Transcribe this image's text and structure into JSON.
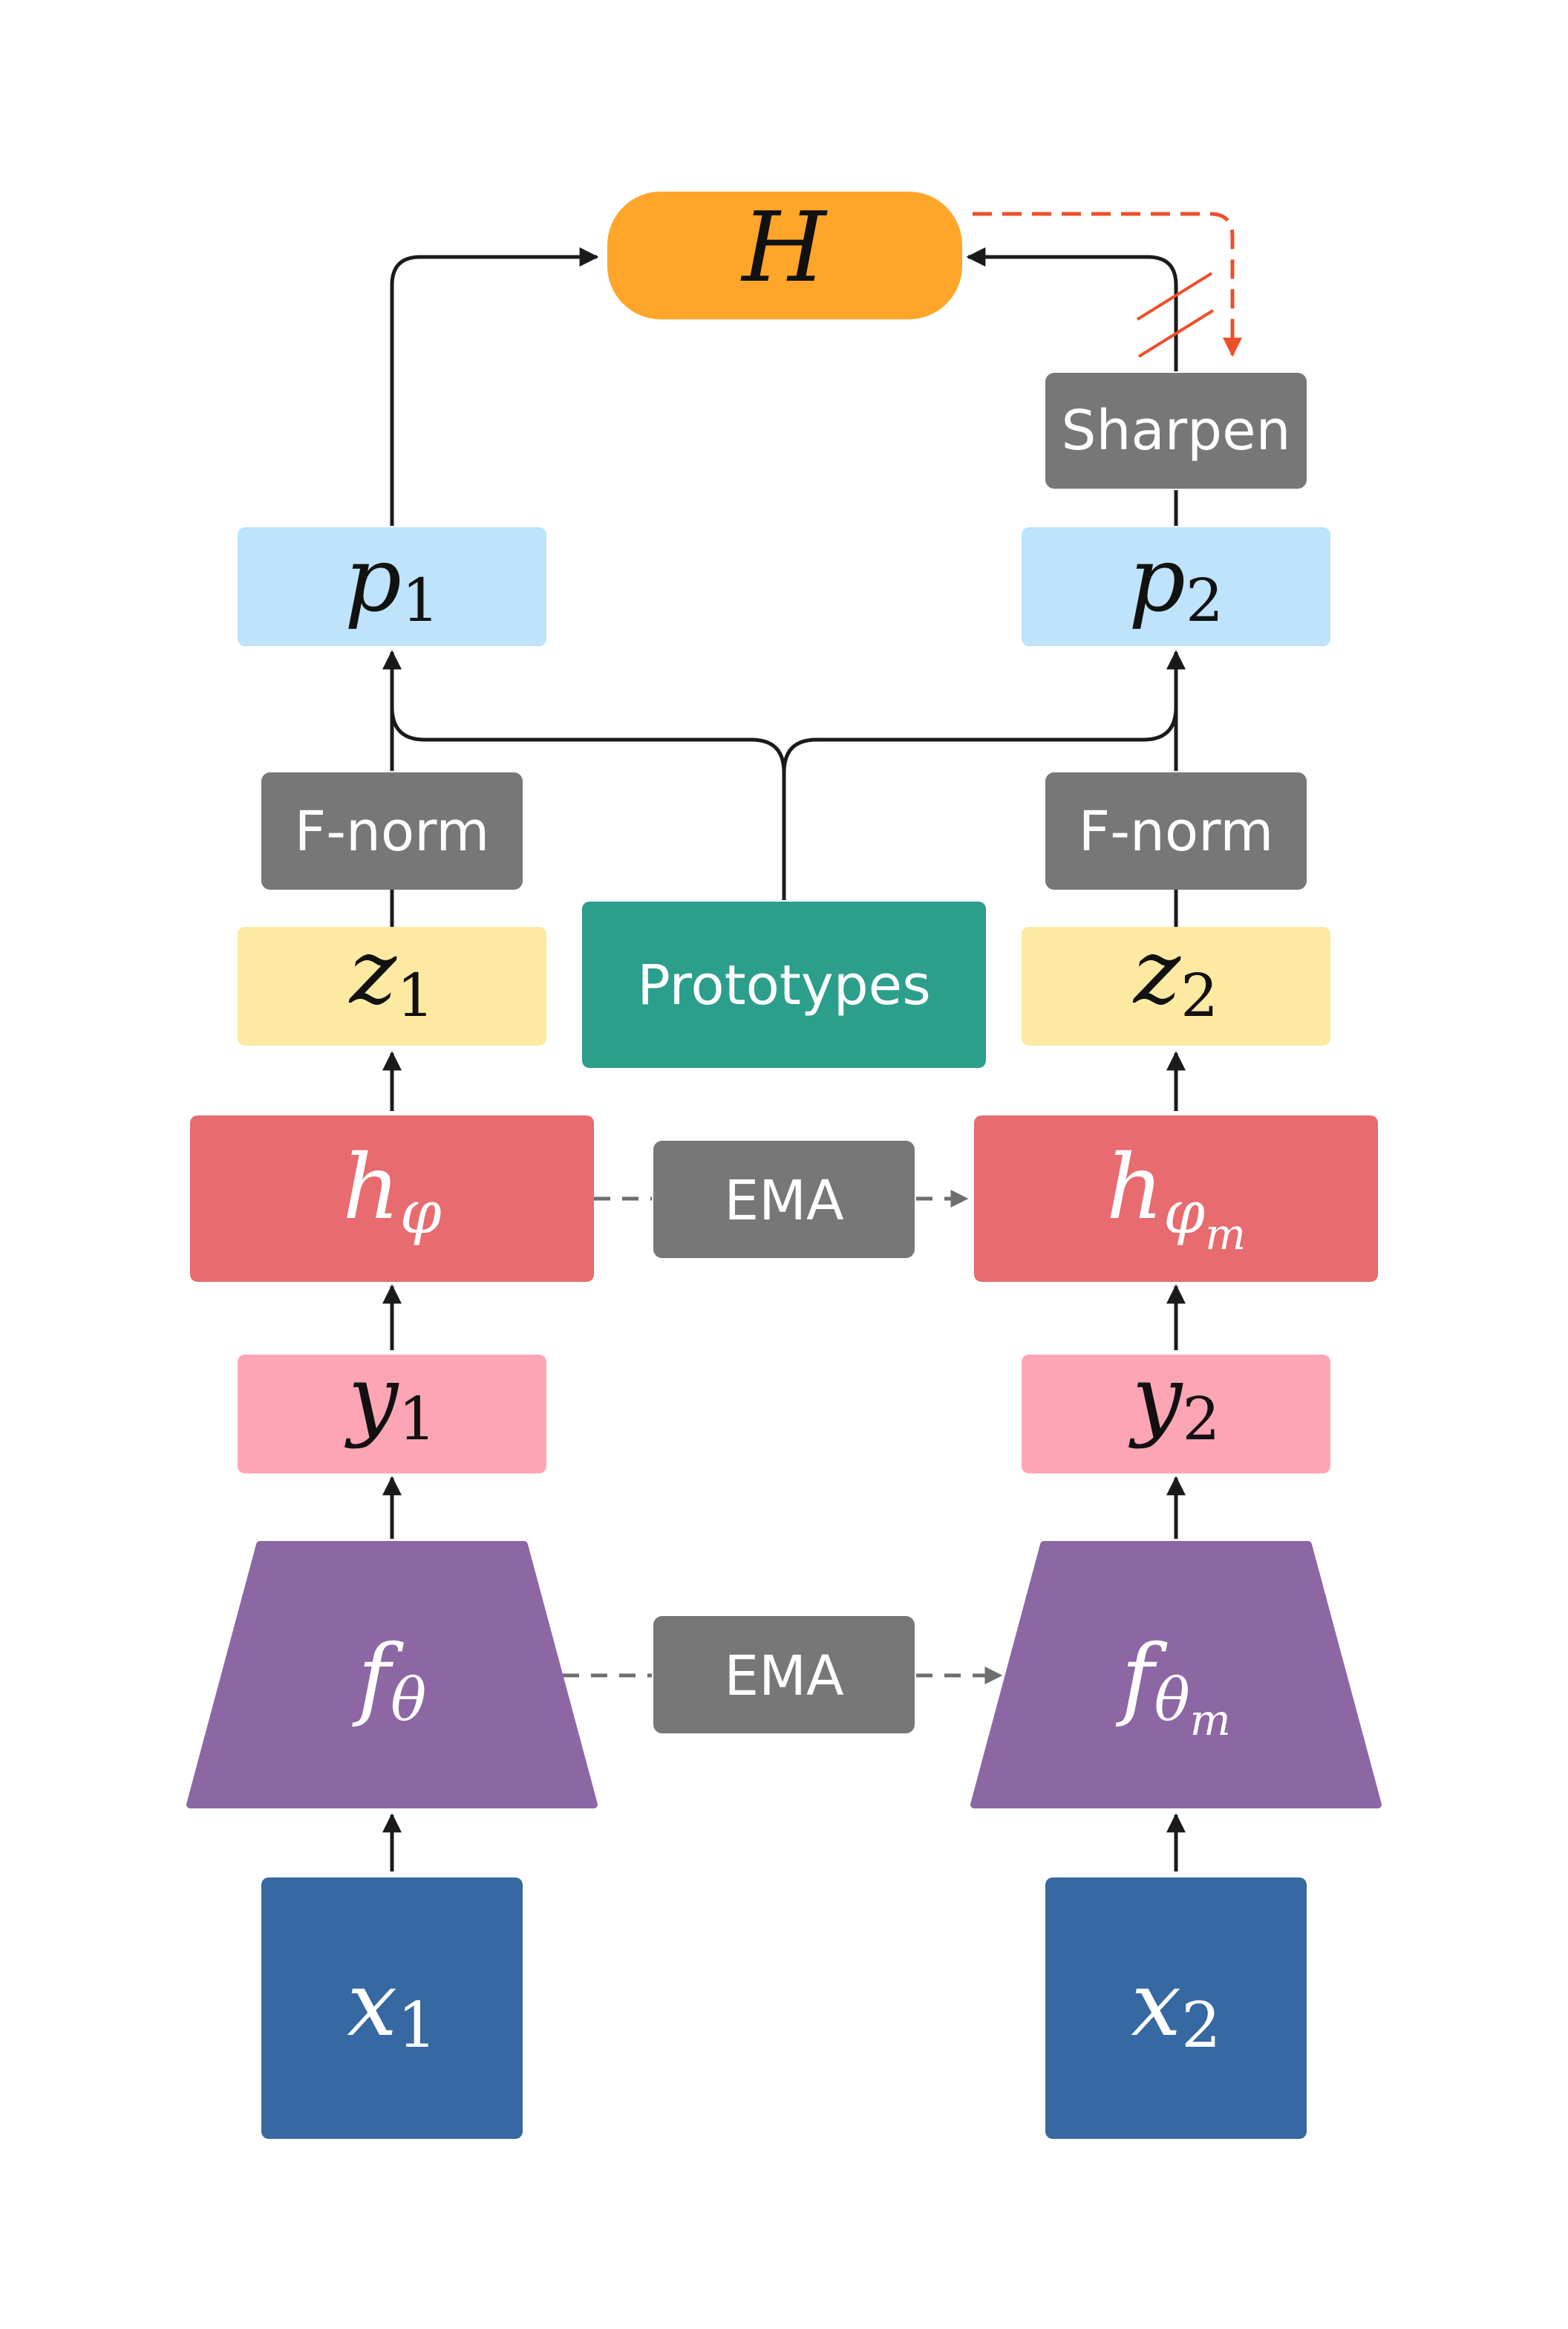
{
  "nodes": {
    "H": {
      "main": "H",
      "sub": "",
      "subsub": ""
    },
    "sharpen": {
      "label": "Sharpen"
    },
    "p1": {
      "main": "p",
      "sub": "1"
    },
    "p2": {
      "main": "p",
      "sub": "2"
    },
    "fnorm1": {
      "label": "F-norm"
    },
    "fnorm2": {
      "label": "F-norm"
    },
    "z1": {
      "main": "z",
      "sub": "1"
    },
    "z2": {
      "main": "z",
      "sub": "2"
    },
    "prototypes": {
      "label": "Prototypes"
    },
    "h1": {
      "main": "h",
      "sub": "φ"
    },
    "h2": {
      "main": "h",
      "sub": "φ",
      "subsub": "m"
    },
    "ema_top": {
      "label": "EMA"
    },
    "y1": {
      "main": "y",
      "sub": "1"
    },
    "y2": {
      "main": "y",
      "sub": "2"
    },
    "f1": {
      "main": "f",
      "sub": "θ"
    },
    "f2": {
      "main": "f",
      "sub": "θ",
      "subsub": "m"
    },
    "ema_bottom": {
      "label": "EMA"
    },
    "x1": {
      "main": "x",
      "sub": "1"
    },
    "x2": {
      "main": "x",
      "sub": "2"
    }
  },
  "colors": {
    "H": "#FFA52A",
    "gray_box": "#777777",
    "p": "#BEE3FB",
    "z": "#FDE9A2",
    "prototypes": "#2C9E8C",
    "h": "#E76B6F",
    "y": "#FDA5B5",
    "f": "#8C67A4",
    "x": "#3668A2",
    "arrow": "#1A1A1A",
    "dashed": "#6E6E6E",
    "stop_grad": "#EE4F2A"
  }
}
